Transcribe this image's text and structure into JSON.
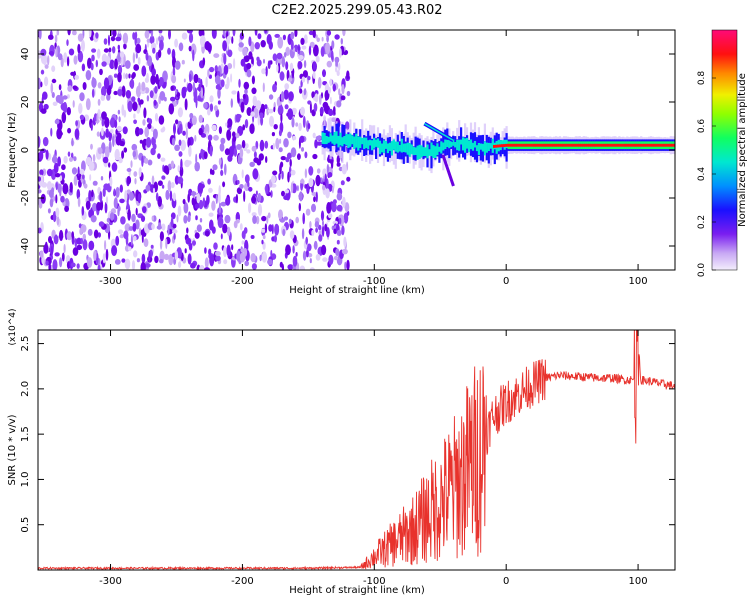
{
  "title": "C2E2.2025.299.05.43.R02",
  "colors": {
    "snr_line": "#e8322c",
    "scatter": "#6a00e0",
    "axis": "#000000"
  },
  "chart_data": [
    {
      "type": "heatmap",
      "name": "spectrogram",
      "xlabel": "Height of straight line (km)",
      "ylabel": "Frequency (Hz)",
      "xlim": [
        -355,
        128
      ],
      "ylim": [
        -50,
        50
      ],
      "x_ticks": [
        -300,
        -200,
        -100,
        0,
        100
      ],
      "y_ticks": [
        -40,
        -20,
        0,
        20,
        40
      ],
      "noise_region_x": [
        -355,
        -127
      ],
      "signal_band": [
        {
          "x": -140,
          "f": 5
        },
        {
          "x": -120,
          "f": 4
        },
        {
          "x": -100,
          "f": 2
        },
        {
          "x": -80,
          "f": 1
        },
        {
          "x": -60,
          "f": -1
        },
        {
          "x": -40,
          "f": 3
        },
        {
          "x": -20,
          "f": 1
        },
        {
          "x": 0,
          "f": 2
        },
        {
          "x": 50,
          "f": 2
        },
        {
          "x": 100,
          "f": 2
        },
        {
          "x": 128,
          "f": 2
        }
      ],
      "colorbar": {
        "label": "Normalized spectral amplitude",
        "range": [
          0,
          1
        ],
        "ticks": [
          "0.0",
          "0.2",
          "0.4",
          "0.6",
          "0.8"
        ]
      }
    },
    {
      "type": "line",
      "name": "snr",
      "xlabel": "Height of straight line (km)",
      "ylabel": "SNR (10 * v/v)",
      "scale_label": "(x10^4)",
      "xlim": [
        -355,
        128
      ],
      "ylim": [
        0,
        2.65
      ],
      "x_ticks": [
        -300,
        -200,
        -100,
        0,
        100
      ],
      "y_ticks": [
        "0.5",
        "1.0",
        "1.5",
        "2.0",
        "2.5"
      ],
      "series": [
        {
          "name": "SNR",
          "x": [
            -355,
            -300,
            -200,
            -150,
            -110,
            -100,
            -90,
            -80,
            -70,
            -60,
            -50,
            -40,
            -30,
            -20,
            -10,
            0,
            10,
            20,
            30,
            40,
            50,
            60,
            70,
            80,
            90,
            98,
            100,
            102,
            110,
            120,
            128
          ],
          "y": [
            0.02,
            0.02,
            0.02,
            0.02,
            0.03,
            0.15,
            0.25,
            0.35,
            0.45,
            0.6,
            0.75,
            0.9,
            1.1,
            1.3,
            1.7,
            1.85,
            1.95,
            2.05,
            2.12,
            2.15,
            2.14,
            2.13,
            2.12,
            2.12,
            2.1,
            2.1,
            2.6,
            2.1,
            2.08,
            2.05,
            2.03
          ]
        }
      ]
    }
  ]
}
